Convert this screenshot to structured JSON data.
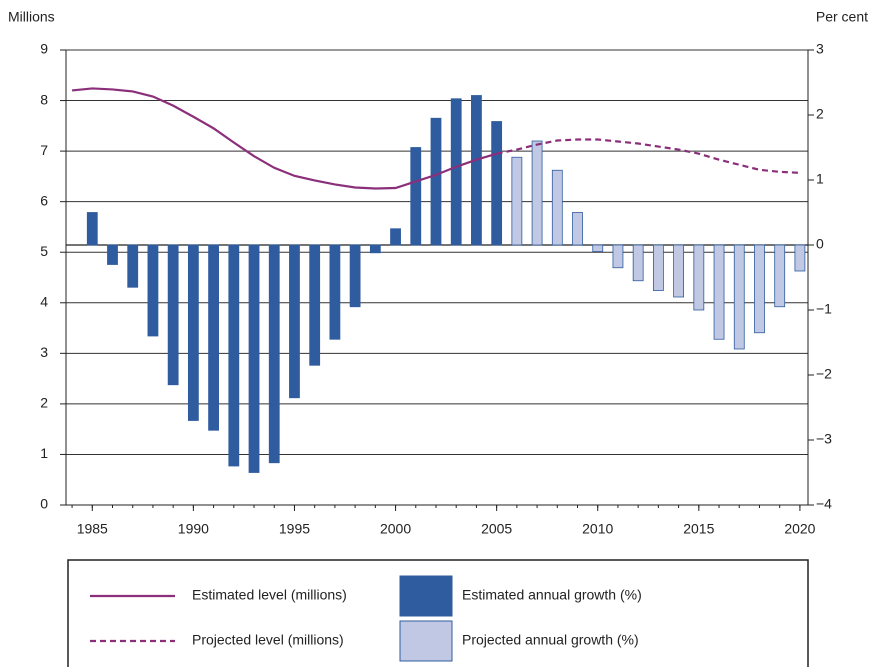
{
  "chart_data": {
    "type": "bar",
    "y_label": "Millions",
    "y2_label": "Per cent",
    "x": [
      1984,
      1985,
      1986,
      1987,
      1988,
      1989,
      1990,
      1991,
      1992,
      1993,
      1994,
      1995,
      1996,
      1997,
      1998,
      1999,
      2000,
      2001,
      2002,
      2003,
      2004,
      2005,
      2006,
      2007,
      2008,
      2009,
      2010,
      2011,
      2012,
      2013,
      2014,
      2015,
      2016,
      2017,
      2018,
      2019,
      2020
    ],
    "xlim": [
      1983.7,
      2020.4
    ],
    "xticks": [
      1985,
      1990,
      1995,
      2000,
      2005,
      2010,
      2015,
      2020
    ],
    "ylim": [
      0,
      9
    ],
    "yticks": [
      0,
      1,
      2,
      3,
      4,
      5,
      6,
      7,
      8,
      9
    ],
    "y2lim": [
      -4,
      3
    ],
    "y2ticks": [
      {
        "value": -4,
        "label": "−4"
      },
      {
        "value": -3,
        "label": "−3"
      },
      {
        "value": -2,
        "label": "−2"
      },
      {
        "value": -1,
        "label": "−1"
      },
      0,
      1,
      2,
      3
    ],
    "grid": true,
    "series": [
      {
        "name": "Estimated level (millions)",
        "type": "line",
        "dashed": false,
        "color": "#8b2f7a",
        "values": [
          8.2,
          8.24,
          8.22,
          8.18,
          8.08,
          7.9,
          7.68,
          7.45,
          7.17,
          6.9,
          6.67,
          6.51,
          6.42,
          6.34,
          6.28,
          6.26,
          6.27,
          6.4,
          6.53,
          6.69,
          6.83,
          6.95,
          null,
          null,
          null,
          null,
          null,
          null,
          null,
          null,
          null,
          null,
          null,
          null,
          null,
          null,
          null
        ]
      },
      {
        "name": "Estimated annual growth (%)",
        "type": "bar",
        "axis": "y2",
        "color": "#2f5c9f",
        "values": [
          null,
          0.5,
          -0.3,
          -0.65,
          -1.4,
          -2.15,
          -2.7,
          -2.85,
          -3.4,
          -3.5,
          -3.35,
          -2.35,
          -1.85,
          -1.45,
          -0.95,
          -0.12,
          0.25,
          1.5,
          1.95,
          2.25,
          2.3,
          1.9,
          null,
          null,
          null,
          null,
          null,
          null,
          null,
          null,
          null,
          null,
          null,
          null,
          null,
          null,
          null
        ]
      },
      {
        "name": "Projected level (millions)",
        "type": "line",
        "dashed": true,
        "color": "#8b2f7a",
        "values": [
          null,
          null,
          null,
          null,
          null,
          null,
          null,
          null,
          null,
          null,
          null,
          null,
          null,
          null,
          null,
          null,
          null,
          null,
          null,
          null,
          null,
          6.95,
          7.03,
          7.13,
          7.21,
          7.23,
          7.23,
          7.19,
          7.15,
          7.09,
          7.03,
          6.95,
          6.83,
          6.73,
          6.63,
          6.59,
          6.57
        ]
      },
      {
        "name": "Projected annual growth (%)",
        "type": "bar",
        "axis": "y2",
        "color": "#c0c8e4",
        "values": [
          null,
          null,
          null,
          null,
          null,
          null,
          null,
          null,
          null,
          null,
          null,
          null,
          null,
          null,
          null,
          null,
          null,
          null,
          null,
          null,
          null,
          null,
          1.35,
          1.6,
          1.15,
          0.5,
          -0.1,
          -0.35,
          -0.55,
          -0.7,
          -0.8,
          -1.0,
          -1.45,
          -1.6,
          -1.35,
          -0.95,
          -0.4
        ]
      }
    ]
  }
}
